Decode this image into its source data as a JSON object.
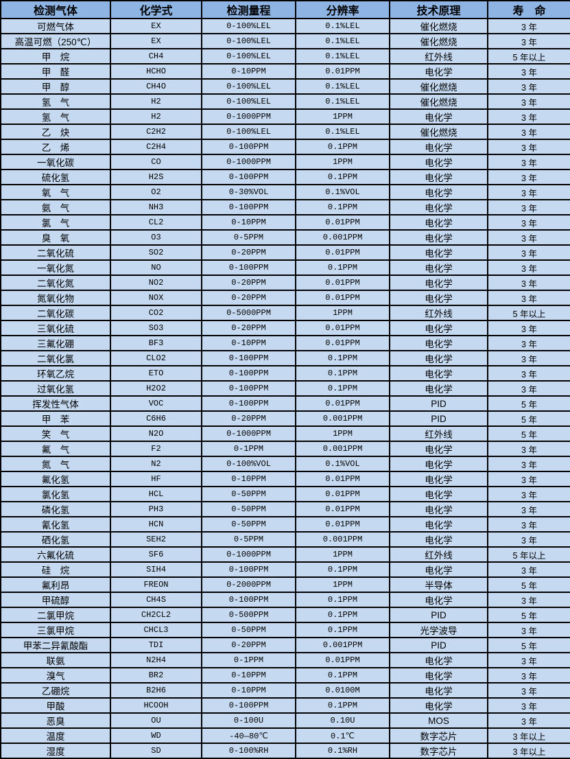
{
  "colors": {
    "header_bg": "#8db4e3",
    "row_bg": "#c5d9f1",
    "border": "#000000",
    "text": "#000000"
  },
  "table": {
    "columns": [
      "检测气体",
      "化学式",
      "检测量程",
      "分辨率",
      "技术原理",
      "寿　命"
    ],
    "col_keys": [
      "cell-gas-name",
      "cell-chemical-formula",
      "cell-detection-range",
      "cell-resolution",
      "cell-technology-principle",
      "cell-lifespan"
    ],
    "rows": [
      [
        "可燃气体",
        "EX",
        "0-100%LEL",
        "0.1%LEL",
        "催化燃烧",
        "3 年"
      ],
      [
        "高温可燃（250℃）",
        "EX",
        "0-100%LEL",
        "0.1%LEL",
        "催化燃烧",
        "3 年"
      ],
      [
        "甲　烷",
        "CH4",
        "0-100%LEL",
        "0.1%LEL",
        "红外线",
        "5 年以上"
      ],
      [
        "甲　醛",
        "HCHO",
        "0-10PPM",
        "0.01PPM",
        "电化学",
        "3 年"
      ],
      [
        "甲　醇",
        "CH4O",
        "0-100%LEL",
        "0.1%LEL",
        "催化燃烧",
        "3 年"
      ],
      [
        "氢　气",
        "H2",
        "0-100%LEL",
        "0.1%LEL",
        "催化燃烧",
        "3 年"
      ],
      [
        "氢　气",
        "H2",
        "0-1000PPM",
        "1PPM",
        "电化学",
        "3 年"
      ],
      [
        "乙　炔",
        "C2H2",
        "0-100%LEL",
        "0.1%LEL",
        "催化燃烧",
        "3 年"
      ],
      [
        "乙　烯",
        "C2H4",
        "0-100PPM",
        "0.1PPM",
        "电化学",
        "3 年"
      ],
      [
        "一氧化碳",
        "CO",
        "0-1000PPM",
        "1PPM",
        "电化学",
        "3 年"
      ],
      [
        "硫化氢",
        "H2S",
        "0-100PPM",
        "0.1PPM",
        "电化学",
        "3 年"
      ],
      [
        "氧　气",
        "O2",
        "0-30%VOL",
        "0.1%VOL",
        "电化学",
        "3 年"
      ],
      [
        "氨　气",
        "NH3",
        "0-100PPM",
        "0.1PPM",
        "电化学",
        "3 年"
      ],
      [
        "氯　气",
        "CL2",
        "0-10PPM",
        "0.01PPM",
        "电化学",
        "3 年"
      ],
      [
        "臭　氧",
        "O3",
        "0-5PPM",
        "0.001PPM",
        "电化学",
        "3 年"
      ],
      [
        "二氧化硫",
        "SO2",
        "0-20PPM",
        "0.01PPM",
        "电化学",
        "3 年"
      ],
      [
        "一氧化氮",
        "NO",
        "0-100PPM",
        "0.1PPM",
        "电化学",
        "3 年"
      ],
      [
        "二氧化氮",
        "NO2",
        "0-20PPM",
        "0.01PPM",
        "电化学",
        "3 年"
      ],
      [
        "氮氧化物",
        "NOX",
        "0-20PPM",
        "0.01PPM",
        "电化学",
        "3 年"
      ],
      [
        "二氧化碳",
        "CO2",
        "0-5000PPM",
        "1PPM",
        "红外线",
        "5 年以上"
      ],
      [
        "三氧化硫",
        "SO3",
        "0-20PPM",
        "0.01PPM",
        "电化学",
        "3 年"
      ],
      [
        "三氟化硼",
        "BF3",
        "0-10PPM",
        "0.01PPM",
        "电化学",
        "3 年"
      ],
      [
        "二氧化氯",
        "CLO2",
        "0-100PPM",
        "0.1PPM",
        "电化学",
        "3 年"
      ],
      [
        "环氧乙烷",
        "ETO",
        "0-100PPM",
        "0.1PPM",
        "电化学",
        "3 年"
      ],
      [
        "过氧化氢",
        "H2O2",
        "0-100PPM",
        "0.1PPM",
        "电化学",
        "3 年"
      ],
      [
        "挥发性气体",
        "VOC",
        "0-100PPM",
        "0.01PPM",
        "PID",
        "5 年"
      ],
      [
        "甲　苯",
        "C6H6",
        "0-20PPM",
        "0.001PPM",
        "PID",
        "5 年"
      ],
      [
        "笑　气",
        "N2O",
        "0-1000PPM",
        "1PPM",
        "红外线",
        "5 年"
      ],
      [
        "氟　气",
        "F2",
        "0-1PPM",
        "0.001PPM",
        "电化学",
        "3 年"
      ],
      [
        "氮　气",
        "N2",
        "0-100%VOL",
        "0.1%VOL",
        "电化学",
        "3 年"
      ],
      [
        "氟化氢",
        "HF",
        "0-10PPM",
        "0.01PPM",
        "电化学",
        "3 年"
      ],
      [
        "氯化氢",
        "HCL",
        "0-50PPM",
        "0.01PPM",
        "电化学",
        "3 年"
      ],
      [
        "磷化氢",
        "PH3",
        "0-50PPM",
        "0.01PPM",
        "电化学",
        "3 年"
      ],
      [
        "氰化氢",
        "HCN",
        "0-50PPM",
        "0.01PPM",
        "电化学",
        "3 年"
      ],
      [
        "硒化氢",
        "SEH2",
        "0-5PPM",
        "0.001PPM",
        "电化学",
        "3 年"
      ],
      [
        "六氟化硫",
        "SF6",
        "0-1000PPM",
        "1PPM",
        "红外线",
        "5 年以上"
      ],
      [
        "硅　烷",
        "SIH4",
        "0-100PPM",
        "0.1PPM",
        "电化学",
        "3 年"
      ],
      [
        "氟利昂",
        "FREON",
        "0-2000PPM",
        "1PPM",
        "半导体",
        "5 年"
      ],
      [
        "甲硫醇",
        "CH4S",
        "0-100PPM",
        "0.1PPM",
        "电化学",
        "3 年"
      ],
      [
        "二氯甲烷",
        "CH2CL2",
        "0-500PPM",
        "0.1PPM",
        "PID",
        "5 年"
      ],
      [
        "三氯甲烷",
        "CHCL3",
        "0-50PPM",
        "0.1PPM",
        "光学波导",
        "3 年"
      ],
      [
        "甲苯二异氰酸酯",
        "TDI",
        "0-20PPM",
        "0.001PPM",
        "PID",
        "5 年"
      ],
      [
        "联氨",
        "N2H4",
        "0-1PPM",
        "0.01PPM",
        "电化学",
        "3 年"
      ],
      [
        "溴气",
        "BR2",
        "0-10PPM",
        "0.1PPM",
        "电化学",
        "3 年"
      ],
      [
        "乙硼烷",
        "B2H6",
        "0-10PPM",
        "0.0100M",
        "电化学",
        "3 年"
      ],
      [
        "甲酸",
        "HCOOH",
        "0-100PPM",
        "0.1PPM",
        "电化学",
        "3 年"
      ],
      [
        "恶臭",
        "OU",
        "0-100U",
        "0.10U",
        "MOS",
        "3 年"
      ],
      [
        "温度",
        "WD",
        "-40—80℃",
        "0.1℃",
        "数字芯片",
        "3 年以上"
      ],
      [
        "湿度",
        "SD",
        "0-100%RH",
        "0.1%RH",
        "数字芯片",
        "3 年以上"
      ]
    ]
  }
}
